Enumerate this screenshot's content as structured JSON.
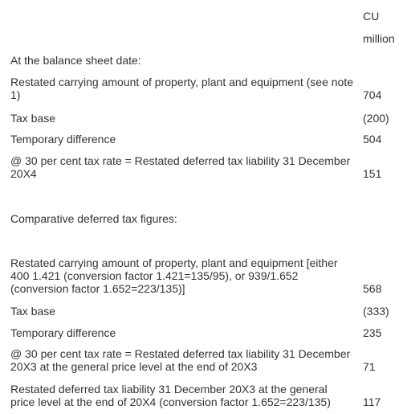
{
  "header": [
    "CU",
    "million"
  ],
  "rows": [
    {
      "label": "At the balance sheet date:"
    },
    {
      "label": "Restated carrying amount of property, plant and equipment (see note 1)",
      "value": "704"
    },
    {
      "label": "Tax base",
      "value": "(200)"
    },
    {
      "label": "Temporary difference",
      "value": "504"
    },
    {
      "label": "@ 30 per cent tax rate = Restated deferred tax liability 31 December 20X4",
      "value": "151"
    },
    {
      "label": "Comparative deferred tax figures:"
    },
    {
      "label": "Restated carrying amount of property, plant and equipment [either 400 1.421 (conversion factor 1.421=135/95), or 939/1.652 (conversion factor 1.652=223/135)]",
      "value": "568"
    },
    {
      "label": "Tax base",
      "value": "(333)"
    },
    {
      "label": "Temporary difference",
      "value": "235"
    },
    {
      "label": "@ 30 per cent tax rate = Restated deferred tax liability 31 December 20X3 at the general price level at the end of 20X3",
      "value": "71"
    },
    {
      "label": "Restated deferred tax liability 31 December 20X3 at the general price level at the end of 20X4 (conversion factor 1.652=223/135)",
      "value": "117"
    }
  ]
}
